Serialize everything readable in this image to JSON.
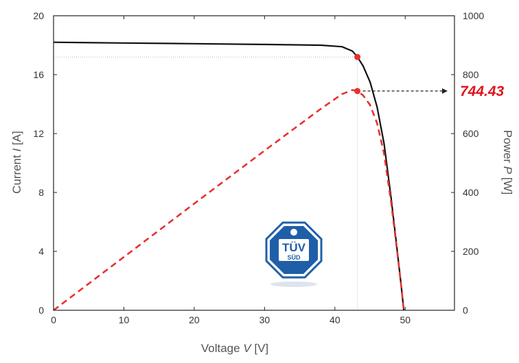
{
  "chart_data": {
    "type": "line",
    "title": "",
    "xlabel": {
      "prefix": "Voltage ",
      "var": "V",
      "suffix": " [V]"
    },
    "ylabel_left": {
      "prefix": "Current ",
      "var": "I",
      "suffix": " [A]"
    },
    "ylabel_right": {
      "prefix": "Power ",
      "var": "P",
      "suffix": " [W]"
    },
    "xlim": [
      0,
      57
    ],
    "ylim_left": [
      0,
      20
    ],
    "ylim_right": [
      0,
      1000
    ],
    "x_ticks": [
      0,
      10,
      20,
      30,
      40,
      50
    ],
    "y_left_ticks": [
      0,
      4,
      8,
      12,
      16,
      20
    ],
    "y_right_ticks": [
      0,
      200,
      400,
      600,
      800,
      1000
    ],
    "grid": false,
    "series": [
      {
        "axis": "left",
        "style": "solid",
        "color": "#111111",
        "x": [
          0,
          10,
          20,
          30,
          38,
          41,
          42.5,
          43.2,
          44,
          45,
          46,
          47,
          48,
          48.8,
          49.4,
          49.8
        ],
        "y": [
          18.2,
          18.15,
          18.1,
          18.05,
          18.0,
          17.9,
          17.6,
          17.2,
          16.6,
          15.5,
          13.8,
          11.3,
          7.6,
          4.3,
          1.8,
          0
        ]
      },
      {
        "axis": "right",
        "style": "dashed",
        "color": "#e8312f",
        "x": [
          0,
          10,
          20,
          30,
          38,
          41,
          42.5,
          43.2,
          44,
          45,
          46,
          47,
          48,
          48.8,
          49.4,
          49.8
        ],
        "y": [
          0,
          181,
          362,
          542,
          684,
          734,
          748,
          744,
          730,
          697,
          635,
          531,
          365,
          210,
          89,
          0
        ]
      }
    ],
    "mpp": {
      "x": 43.2,
      "current": 17.2,
      "power": 744.43
    },
    "annotation": {
      "text": "744.43",
      "color": "#e0131a"
    },
    "certification_mark": {
      "main": "TÜV",
      "sub": "SÜD",
      "color": "#1f5fa8"
    }
  }
}
